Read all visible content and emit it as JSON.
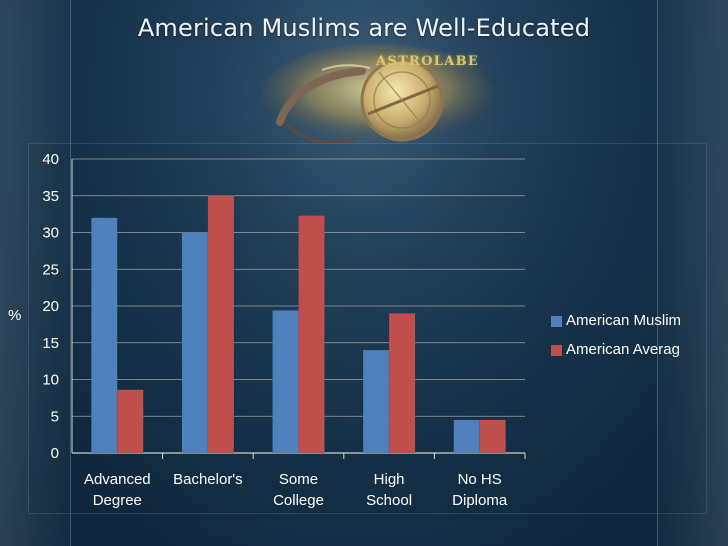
{
  "slide": {
    "title": "American Muslims are Well-Educated",
    "banner_text": "ASTROLABE"
  },
  "chart_data": {
    "type": "bar",
    "title": "American Muslims are Well-Educated",
    "xlabel": "",
    "ylabel": "%",
    "ylim": [
      0,
      40
    ],
    "yticks": [
      0,
      5,
      10,
      15,
      20,
      25,
      30,
      35,
      40
    ],
    "grid": true,
    "legend_position": "right",
    "categories": [
      [
        "Advanced",
        "Degree"
      ],
      [
        "Bachelor's"
      ],
      [
        "Some",
        "College"
      ],
      [
        "High",
        "School"
      ],
      [
        "No HS",
        "Diploma"
      ]
    ],
    "series": [
      {
        "name": "American Muslim",
        "color": "#4f81bd",
        "values": [
          32,
          30,
          19.4,
          14,
          4.5
        ]
      },
      {
        "name": "American Averag",
        "color": "#c0504d",
        "values": [
          8.6,
          35,
          32.3,
          19,
          4.5
        ]
      }
    ]
  }
}
